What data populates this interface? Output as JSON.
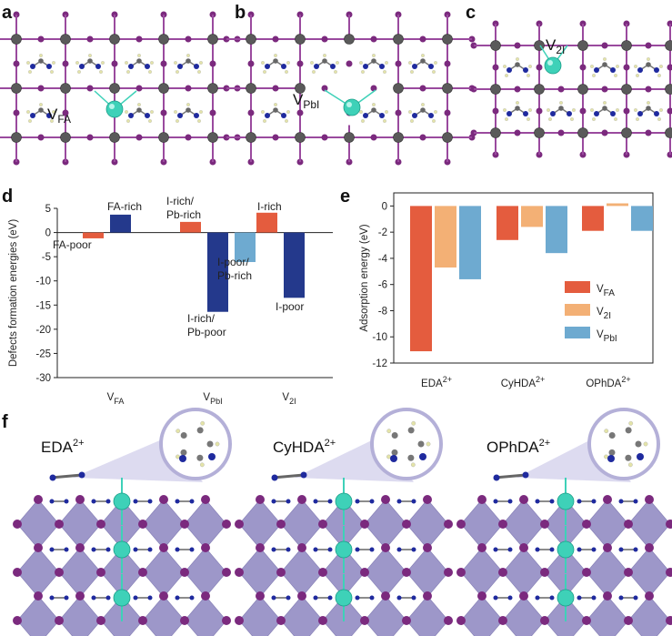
{
  "panels": {
    "a": {
      "letter": "a",
      "vacancy": "V",
      "vacancy_sub": "FA"
    },
    "b": {
      "letter": "b",
      "vacancy": "V",
      "vacancy_sub": "PbI"
    },
    "c": {
      "letter": "c",
      "vacancy": "V",
      "vacancy_sub": "2I"
    },
    "d": {
      "letter": "d"
    },
    "e": {
      "letter": "e"
    },
    "f": {
      "letter": "f",
      "molecules": [
        {
          "name": "EDA",
          "charge": "2+"
        },
        {
          "name": "CyHDA",
          "charge": "2+"
        },
        {
          "name": "OPhDA",
          "charge": "2+"
        }
      ]
    }
  },
  "colors": {
    "lead": "#5a5a5a",
    "iodide": "#7b2a7e",
    "bond": "#9a4a9e",
    "vacancy": "#3ed1b8",
    "nitrogen": "#1f2a9e",
    "hydrogen": "#e4e4a8",
    "octahedron": "#8d86c0",
    "bar_red": "#e45c3e",
    "bar_navy": "#24398c",
    "bar_blue": "#6eaad0",
    "bar_orange": "#f3b075"
  },
  "chart_data": [
    {
      "type": "bar",
      "title": "",
      "ylabel": "Defects formation energies (eV)",
      "ylim": [
        -30,
        5
      ],
      "yticks": [
        5,
        0,
        -5,
        -10,
        -15,
        -20,
        -25,
        -30
      ],
      "categories": [
        {
          "main": "V",
          "sub": "FA"
        },
        {
          "main": "V",
          "sub": "PbI"
        },
        {
          "main": "V",
          "sub": "2I"
        }
      ],
      "bars": [
        {
          "category": 0,
          "slot": 0,
          "value": -1.2,
          "color": "#e45c3e",
          "label": [
            "FA-poor"
          ]
        },
        {
          "category": 0,
          "slot": 1,
          "value": 3.7,
          "color": "#24398c",
          "label": [
            "FA-rich"
          ]
        },
        {
          "category": 1,
          "slot": 0,
          "value": 2.2,
          "color": "#e45c3e",
          "label": [
            "I-rich/",
            "Pb-rich"
          ]
        },
        {
          "category": 1,
          "slot": 1,
          "value": -16.4,
          "color": "#24398c",
          "label": [
            "I-rich/",
            "Pb-poor"
          ]
        },
        {
          "category": 1,
          "slot": 2,
          "value": -6.1,
          "color": "#6eaad0",
          "label": [
            "I-poor/",
            "Pb-rich"
          ]
        },
        {
          "category": 2,
          "slot": 0,
          "value": 4.1,
          "color": "#e45c3e",
          "label": [
            "I-rich"
          ]
        },
        {
          "category": 2,
          "slot": 1,
          "value": -13.5,
          "color": "#24398c",
          "label": [
            "I-poor"
          ]
        }
      ]
    },
    {
      "type": "bar",
      "title": "",
      "ylabel": "Adsorption energy (eV)",
      "ylim": [
        -12,
        1
      ],
      "yticks": [
        0,
        -2,
        -4,
        -6,
        -8,
        -10,
        -12
      ],
      "categories": [
        {
          "main": "EDA",
          "sup": "2+"
        },
        {
          "main": "CyHDA",
          "sup": "2+"
        },
        {
          "main": "OPhDA",
          "sup": "2+"
        }
      ],
      "series": [
        {
          "name": "V",
          "name_sub": "FA",
          "color": "#e45c3e",
          "values": [
            -11.1,
            -2.6,
            -1.9
          ]
        },
        {
          "name": "V",
          "name_sub": "2I",
          "color": "#f3b075",
          "values": [
            -4.7,
            -1.6,
            0.2
          ]
        },
        {
          "name": "V",
          "name_sub": "PbI",
          "color": "#6eaad0",
          "values": [
            -5.6,
            -3.6,
            -1.9
          ]
        }
      ],
      "legend_position": "right"
    }
  ]
}
